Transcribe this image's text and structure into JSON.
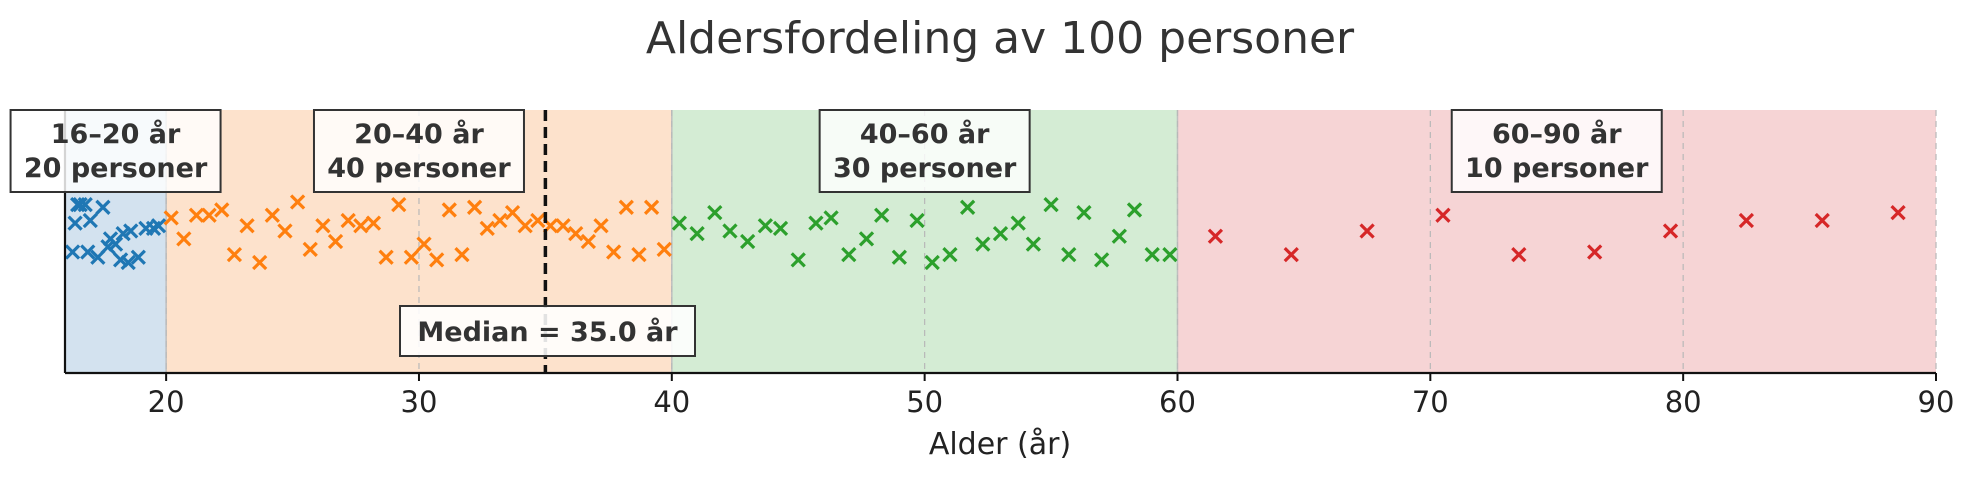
{
  "chart_data": {
    "type": "scatter",
    "title": "Aldersfordeling av 100 personer",
    "xlabel": "Alder (år)",
    "ylabel": "",
    "xlim": [
      16,
      90
    ],
    "xticks": [
      "20",
      "30",
      "40",
      "50",
      "60",
      "70",
      "80",
      "90"
    ],
    "xtick_values": [
      20,
      30,
      40,
      50,
      60,
      70,
      80,
      90
    ],
    "grid": "vertical dashed",
    "median": {
      "value": 35.0,
      "label": "Median = 35.0 år"
    },
    "groups": [
      {
        "range": [
          16,
          20
        ],
        "label_line1": "16–20 år",
        "label_line2": "20 personer",
        "color": "#1f77b4",
        "band_color": "#d3e2ef",
        "x": [
          16.3,
          16.4,
          16.5,
          16.6,
          16.8,
          16.9,
          17.0,
          17.3,
          17.5,
          17.7,
          17.8,
          18.0,
          18.2,
          18.3,
          18.5,
          18.6,
          18.9,
          19.2,
          19.5,
          19.7
        ],
        "y": [
          0.46,
          0.57,
          0.64,
          0.64,
          0.64,
          0.46,
          0.58,
          0.44,
          0.63,
          0.48,
          0.51,
          0.49,
          0.43,
          0.53,
          0.42,
          0.54,
          0.44,
          0.55,
          0.55,
          0.56
        ]
      },
      {
        "range": [
          20,
          40
        ],
        "label_line1": "20–40 år",
        "label_line2": "40 personer",
        "color": "#ff7f0e",
        "band_color": "#fde2cc",
        "x": [
          20.2,
          20.7,
          21.2,
          21.7,
          22.2,
          22.7,
          23.2,
          23.7,
          24.2,
          24.7,
          25.2,
          25.7,
          26.2,
          26.7,
          27.2,
          27.7,
          28.2,
          28.7,
          29.2,
          29.7,
          30.2,
          30.7,
          31.2,
          31.7,
          32.2,
          32.7,
          33.2,
          33.7,
          34.2,
          34.7,
          35.2,
          35.7,
          36.2,
          36.7,
          37.2,
          37.7,
          38.2,
          38.7,
          39.2,
          39.7
        ],
        "y": [
          0.59,
          0.51,
          0.6,
          0.6,
          0.62,
          0.45,
          0.56,
          0.42,
          0.6,
          0.54,
          0.65,
          0.47,
          0.56,
          0.5,
          0.58,
          0.56,
          0.57,
          0.44,
          0.64,
          0.44,
          0.49,
          0.43,
          0.62,
          0.45,
          0.63,
          0.55,
          0.58,
          0.61,
          0.56,
          0.58,
          0.56,
          0.56,
          0.53,
          0.5,
          0.56,
          0.46,
          0.63,
          0.45,
          0.63,
          0.47
        ]
      },
      {
        "range": [
          40,
          60
        ],
        "label_line1": "40–60 år",
        "label_line2": "30 personer",
        "color": "#2ca02c",
        "band_color": "#d4ecd4",
        "x": [
          40.3,
          41.0,
          41.7,
          42.3,
          43.0,
          43.7,
          44.3,
          45.0,
          45.7,
          46.3,
          47.0,
          47.7,
          48.3,
          49.0,
          49.7,
          50.3,
          51.0,
          51.7,
          52.3,
          53.0,
          53.7,
          54.3,
          55.0,
          55.7,
          56.3,
          57.0,
          57.7,
          58.3,
          59.0,
          59.7
        ],
        "y": [
          0.57,
          0.53,
          0.61,
          0.54,
          0.5,
          0.56,
          0.55,
          0.43,
          0.57,
          0.59,
          0.45,
          0.51,
          0.6,
          0.44,
          0.58,
          0.42,
          0.45,
          0.63,
          0.49,
          0.53,
          0.57,
          0.49,
          0.64,
          0.45,
          0.61,
          0.43,
          0.52,
          0.62,
          0.45,
          0.45
        ]
      },
      {
        "range": [
          60,
          90
        ],
        "label_line1": "60–90 år",
        "label_line2": "10 personer",
        "color": "#d62728",
        "band_color": "#f6d4d5",
        "x": [
          61.5,
          64.5,
          67.5,
          70.5,
          73.5,
          76.5,
          79.5,
          82.5,
          85.5,
          88.5
        ],
        "y": [
          0.52,
          0.45,
          0.54,
          0.6,
          0.45,
          0.46,
          0.54,
          0.58,
          0.58,
          0.61
        ]
      }
    ]
  }
}
